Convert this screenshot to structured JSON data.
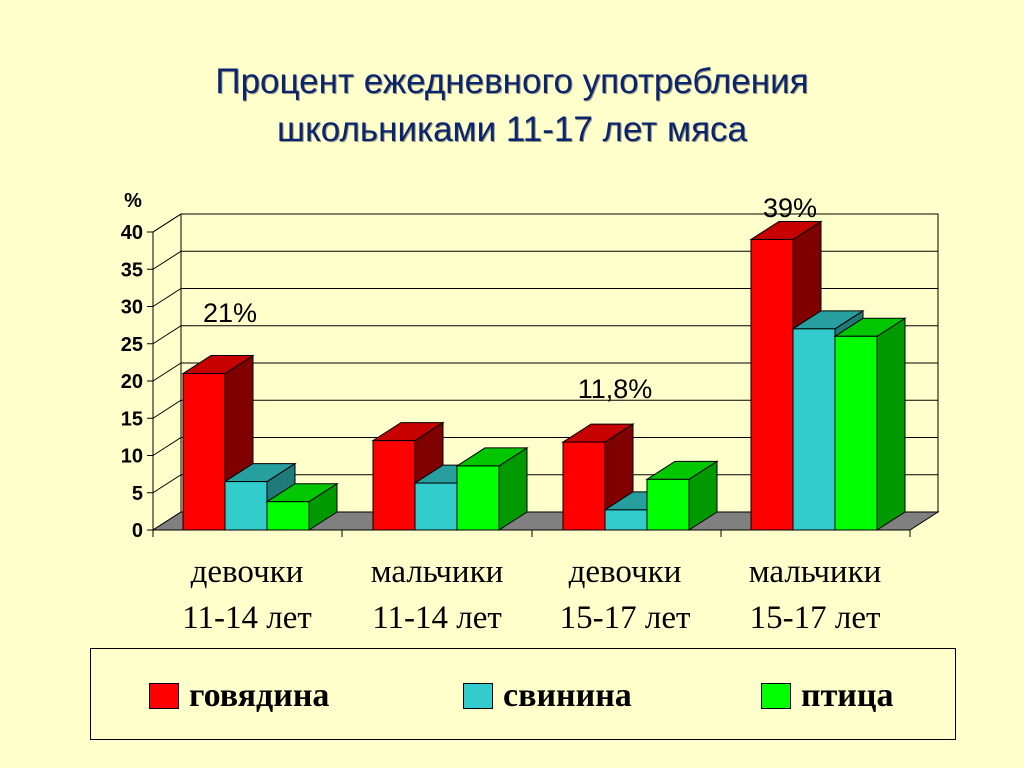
{
  "page": {
    "title_line1": "Процент ежедневного употребления",
    "title_line2": "школьниками 11-17 лет мяса"
  },
  "chart_data": {
    "type": "bar",
    "title": "Процент ежедневного употребления школьниками 11-17 лет мяса",
    "ylabel": "%",
    "ylim": [
      0,
      40
    ],
    "yticks": [
      "0",
      "5",
      "10",
      "15",
      "20",
      "25",
      "30",
      "35",
      "40"
    ],
    "grid": true,
    "legend_position": "bottom",
    "categories": [
      {
        "line1": "девочки",
        "line2": "11-14 лет"
      },
      {
        "line1": "мальчики",
        "line2": "11-14 лет"
      },
      {
        "line1": "девочки",
        "line2": "15-17 лет"
      },
      {
        "line1": "мальчики",
        "line2": "15-17 лет"
      }
    ],
    "series": [
      {
        "name": "говядина",
        "color": "#FF0000",
        "values": [
          21,
          12,
          11.8,
          39
        ]
      },
      {
        "name": "свинина",
        "color": "#33CCCC",
        "values": [
          6.5,
          6.3,
          2.7,
          27
        ]
      },
      {
        "name": "птица",
        "color": "#00FF00",
        "values": [
          3.8,
          8.6,
          6.8,
          26
        ]
      }
    ],
    "annotations": [
      {
        "text": "21%",
        "category": 0
      },
      {
        "text": "11,8%",
        "category": 2
      },
      {
        "text": "39%",
        "category": 3
      }
    ]
  }
}
